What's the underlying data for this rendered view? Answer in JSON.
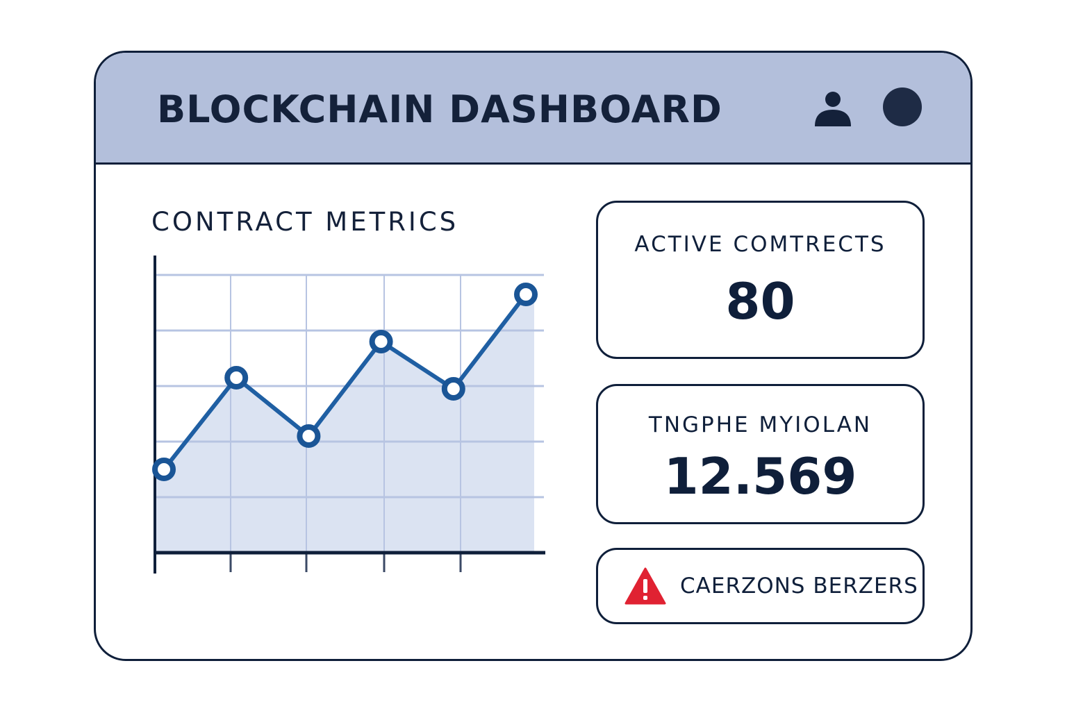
{
  "header": {
    "title": "BLOCKCHAIN DASHBOARD",
    "icons": [
      "user-icon",
      "status-dot-icon"
    ]
  },
  "main": {
    "section_title": "CONTRACT METRICS"
  },
  "cards": [
    {
      "label": "ACTIVE COMTRECTS",
      "value": "80"
    },
    {
      "label": "TNGPHE MYIOLAN",
      "value": "12.569"
    }
  ],
  "alert": {
    "label": "CAERZONS BERZERS",
    "icon": "warning-triangle-icon",
    "color": "#e02232"
  },
  "colors": {
    "navy": "#0f1f3a",
    "header_bg": "#b3bfdb",
    "line": "#1f5fa3",
    "fill": "#dbe3f2",
    "grid": "#b7c4e2"
  },
  "chart_data": {
    "type": "area",
    "title": "CONTRACT METRICS",
    "x": [
      0,
      1,
      2,
      3,
      4,
      5
    ],
    "values": [
      1.5,
      3.15,
      2.1,
      3.8,
      2.95,
      4.65
    ],
    "ylim": [
      0,
      5
    ],
    "grid": true,
    "xlabel": "",
    "ylabel": ""
  }
}
